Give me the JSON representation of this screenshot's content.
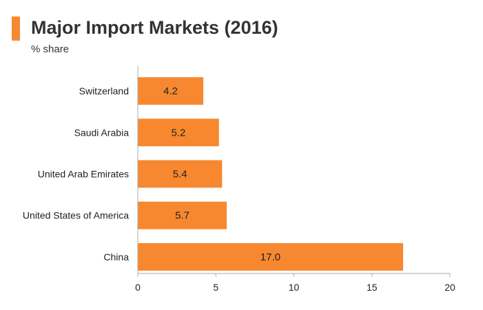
{
  "chart_data": {
    "type": "bar",
    "orientation": "horizontal",
    "title": "Major Import Markets (2016)",
    "subtitle": "% share",
    "categories": [
      "Switzerland",
      "Saudi Arabia",
      "United Arab Emirates",
      "United States of America",
      "China"
    ],
    "values": [
      4.2,
      5.2,
      5.4,
      5.7,
      17.0
    ],
    "data_labels": [
      "4.2",
      "5.2",
      "5.4",
      "5.7",
      "17.0"
    ],
    "xlim": [
      0,
      20
    ],
    "xticks": [
      "0",
      "5",
      "10",
      "15",
      "20"
    ],
    "xlabel": "",
    "ylabel": "",
    "grid": false,
    "legend": "none"
  },
  "colors": {
    "accent": "#f7882f",
    "bar": "#f7882f",
    "axis": "#aaaaaa",
    "text": "#333333"
  }
}
